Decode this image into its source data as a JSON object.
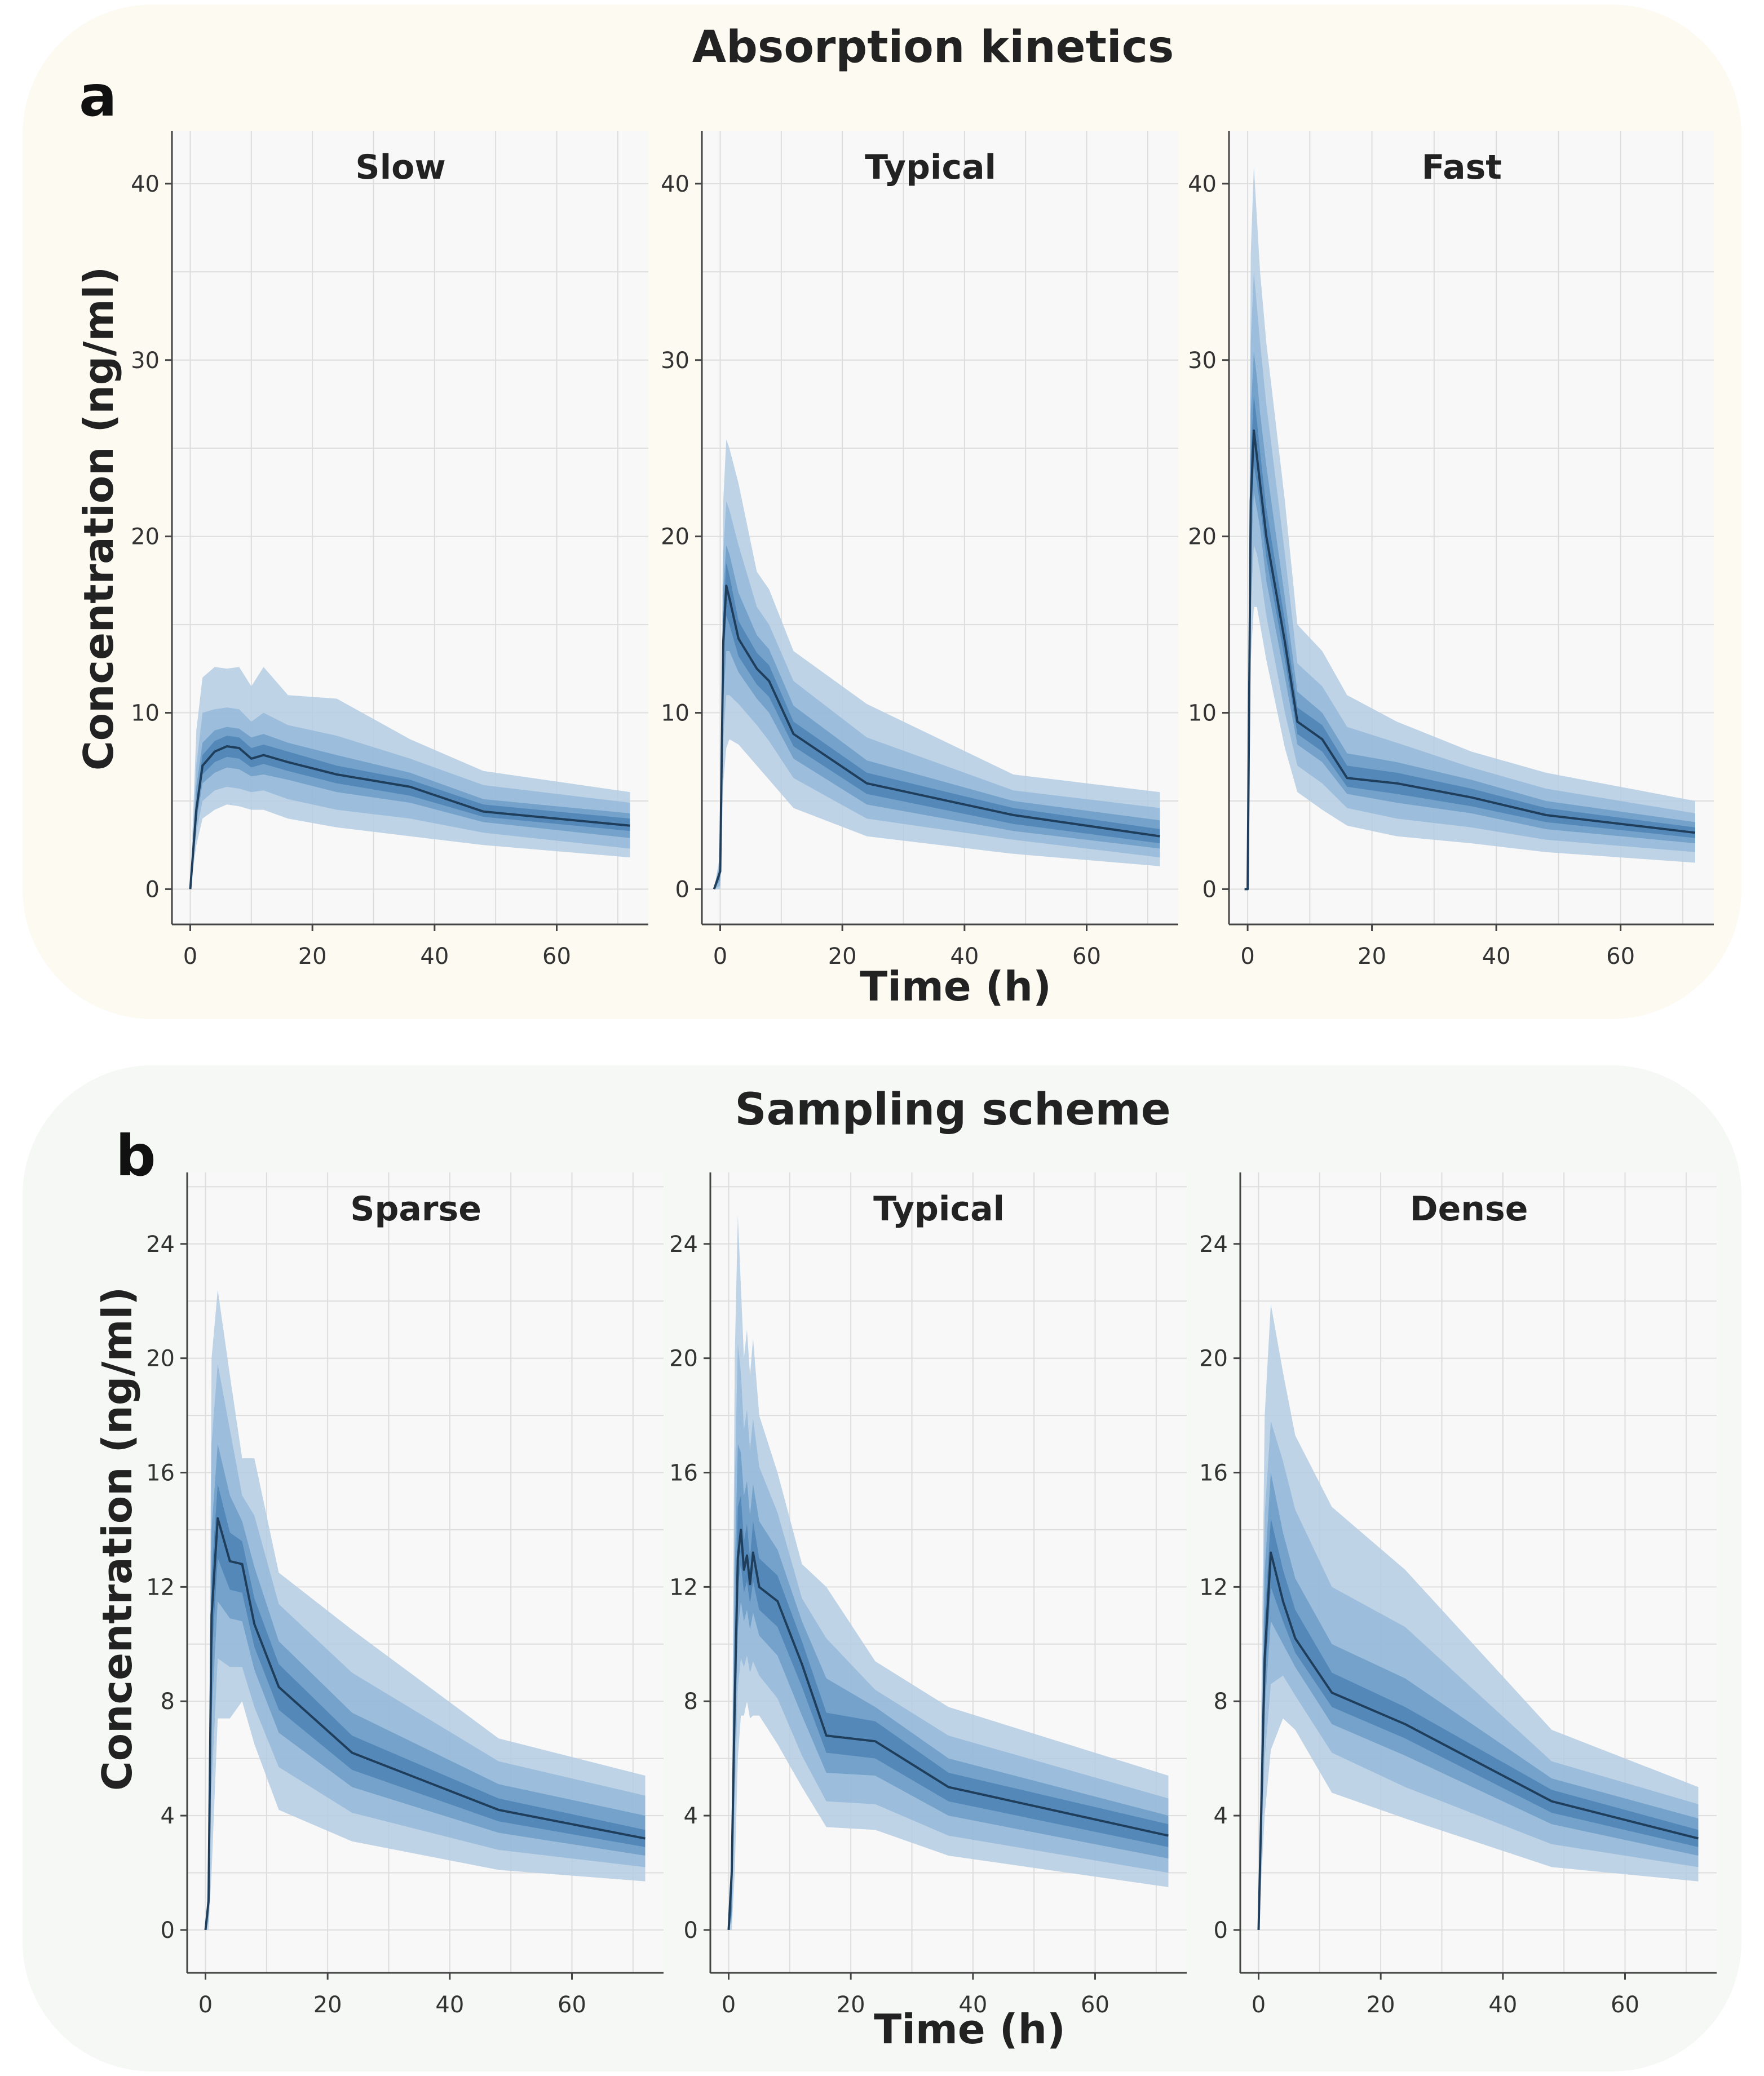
{
  "colors": {
    "section_a_bg": "#fdfaf2",
    "section_b_bg": "#f5f8f5",
    "plot_bg": "#f8f8f8",
    "grid": "#dddddd",
    "axis": "#444444",
    "band_outer": "#b5cde3",
    "band_mid": "#95b8d8",
    "band_inner": "#6e9dc7",
    "band_core": "#4d84b6",
    "median_line": "#1f3e5c"
  },
  "sections": [
    {
      "letter": "a",
      "title": "Absorption kinetics",
      "ylabel": "Concentration (ng/ml)",
      "xlabel": "Time (h)"
    },
    {
      "letter": "b",
      "title": "Sampling scheme",
      "ylabel": "Concentration (ng/ml)",
      "xlabel": "Time (h)"
    }
  ],
  "chart_data": [
    {
      "type": "area",
      "section": "a",
      "title": "Slow",
      "xlim": [
        -3,
        75
      ],
      "ylim": [
        -2,
        43
      ],
      "xticks": [
        0,
        20,
        40,
        60
      ],
      "yticks": [
        0,
        10,
        20,
        30,
        40
      ],
      "grid": true,
      "x": [
        0,
        1,
        2,
        4,
        6,
        8,
        10,
        12,
        16,
        24,
        36,
        48,
        72
      ],
      "median": [
        0,
        4.5,
        7,
        7.8,
        8.1,
        8.0,
        7.4,
        7.6,
        7.2,
        6.5,
        5.8,
        4.4,
        3.6
      ],
      "bands": [
        {
          "level": "outer",
          "lower": [
            0,
            2.5,
            4,
            4.5,
            4.8,
            4.7,
            4.5,
            4.5,
            4.0,
            3.5,
            3.0,
            2.5,
            1.8
          ],
          "upper": [
            0,
            9,
            12,
            12.6,
            12.5,
            12.6,
            11.5,
            12.6,
            11,
            10.8,
            8.5,
            6.7,
            5.5
          ]
        },
        {
          "level": "mid",
          "lower": [
            0,
            3.2,
            5,
            5.6,
            5.8,
            5.7,
            5.5,
            5.6,
            5.1,
            4.5,
            4.0,
            3.2,
            2.3
          ],
          "upper": [
            0,
            7,
            10,
            10.2,
            10.3,
            10.2,
            9.5,
            10,
            9.3,
            8.7,
            7.4,
            5.9,
            4.9
          ]
        },
        {
          "level": "inner",
          "lower": [
            0,
            3.8,
            6,
            6.6,
            6.9,
            6.8,
            6.4,
            6.5,
            6.2,
            5.5,
            4.9,
            3.8,
            2.9
          ],
          "upper": [
            0,
            5.8,
            8.3,
            9.0,
            9.2,
            9.1,
            8.6,
            8.8,
            8.3,
            7.6,
            6.6,
            5.1,
            4.3
          ]
        },
        {
          "level": "core",
          "lower": [
            0,
            4.2,
            6.5,
            7.2,
            7.5,
            7.4,
            6.9,
            7.1,
            6.7,
            6.0,
            5.3,
            4.1,
            3.3
          ],
          "upper": [
            0,
            5.0,
            7.6,
            8.4,
            8.7,
            8.6,
            8.0,
            8.2,
            7.8,
            7.0,
            6.2,
            4.8,
            4.0
          ]
        }
      ]
    },
    {
      "type": "area",
      "section": "a",
      "title": "Typical",
      "xlim": [
        -3,
        75
      ],
      "ylim": [
        -2,
        43
      ],
      "xticks": [
        0,
        20,
        40,
        60
      ],
      "yticks": [
        0,
        10,
        20,
        30,
        40
      ],
      "grid": true,
      "x": [
        -1,
        0,
        0.5,
        1,
        1.5,
        3,
        6,
        8,
        12,
        24,
        48,
        72
      ],
      "median": [
        0,
        1,
        14,
        17.2,
        16.5,
        14.2,
        12.5,
        11.8,
        8.8,
        6.0,
        4.2,
        3.0
      ],
      "bands": [
        {
          "level": "outer",
          "lower": [
            0,
            0,
            6,
            8,
            8.5,
            8.2,
            7.0,
            6.2,
            4.6,
            3.0,
            2.0,
            1.3
          ],
          "upper": [
            0,
            2,
            22,
            25.5,
            25,
            23,
            18,
            17.0,
            13.5,
            10.5,
            6.5,
            5.5
          ]
        },
        {
          "level": "mid",
          "lower": [
            0,
            0.2,
            8.5,
            11,
            11,
            10.5,
            9.3,
            8.4,
            6.3,
            4.0,
            2.8,
            1.8
          ],
          "upper": [
            0,
            1.7,
            19,
            22,
            21.5,
            19.5,
            16.0,
            15.0,
            11.8,
            8.6,
            5.6,
            4.6
          ]
        },
        {
          "level": "inner",
          "lower": [
            0,
            0.5,
            10.5,
            13.5,
            13.5,
            12.3,
            10.8,
            10.0,
            7.4,
            4.8,
            3.3,
            2.3
          ],
          "upper": [
            0,
            1.4,
            17,
            19.5,
            19,
            16.8,
            14.4,
            13.6,
            10.4,
            7.3,
            5.0,
            3.9
          ]
        },
        {
          "level": "core",
          "lower": [
            0,
            0.7,
            12.5,
            15.5,
            15.0,
            13.2,
            11.6,
            10.9,
            8.1,
            5.4,
            3.7,
            2.6
          ],
          "upper": [
            0,
            1.2,
            15.5,
            18.5,
            17.8,
            15.2,
            13.4,
            12.7,
            9.5,
            6.6,
            4.6,
            3.4
          ]
        }
      ]
    },
    {
      "type": "area",
      "section": "a",
      "title": "Fast",
      "xlim": [
        -3,
        75
      ],
      "ylim": [
        -2,
        43
      ],
      "xticks": [
        0,
        20,
        40,
        60
      ],
      "yticks": [
        0,
        10,
        20,
        30,
        40
      ],
      "grid": true,
      "x": [
        -0.5,
        0,
        0.5,
        1,
        1.5,
        2,
        3,
        6,
        8,
        12,
        16,
        24,
        36,
        48,
        72
      ],
      "median": [
        0,
        0,
        22,
        26,
        24.5,
        23,
        20,
        14,
        9.5,
        8.5,
        6.3,
        6.0,
        5.2,
        4.2,
        3.2
      ],
      "bands": [
        {
          "level": "outer",
          "lower": [
            0,
            0,
            13,
            16,
            16,
            15,
            13,
            8,
            5.5,
            4.5,
            3.6,
            3.0,
            2.6,
            2.1,
            1.5
          ],
          "upper": [
            0,
            0,
            36,
            41,
            38,
            35,
            31,
            22,
            15,
            13.5,
            11.0,
            9.5,
            7.8,
            6.6,
            5.0
          ]
        },
        {
          "level": "mid",
          "lower": [
            0,
            0,
            16,
            19.5,
            19,
            18,
            15.5,
            10,
            7.0,
            6.0,
            4.6,
            4.0,
            3.5,
            2.8,
            2.1
          ],
          "upper": [
            0,
            0,
            31,
            35,
            33,
            31,
            27.5,
            19,
            12.8,
            11.5,
            9.2,
            8.3,
            6.9,
            5.7,
            4.3
          ]
        },
        {
          "level": "inner",
          "lower": [
            0,
            0,
            18.5,
            22.5,
            21.5,
            20.5,
            17.5,
            12,
            8.2,
            7.2,
            5.4,
            4.9,
            4.3,
            3.4,
            2.6
          ],
          "upper": [
            0,
            0,
            27,
            30.5,
            29,
            27,
            24,
            16.5,
            11.2,
            10.0,
            7.7,
            7.2,
            6.2,
            5.0,
            3.8
          ]
        },
        {
          "level": "core",
          "lower": [
            0,
            0,
            20,
            24,
            23,
            21.8,
            18.8,
            13,
            8.8,
            7.8,
            5.8,
            5.4,
            4.7,
            3.8,
            2.9
          ],
          "upper": [
            0,
            0,
            24.5,
            28,
            26.5,
            24.8,
            21.6,
            15.2,
            10.3,
            9.3,
            7.0,
            6.6,
            5.7,
            4.6,
            3.5
          ]
        }
      ]
    },
    {
      "type": "area",
      "section": "b",
      "title": "Sparse",
      "xlim": [
        -3,
        75
      ],
      "ylim": [
        -1.5,
        26.5
      ],
      "xticks": [
        0,
        20,
        40,
        60
      ],
      "yticks": [
        0,
        4,
        8,
        12,
        16,
        20,
        24
      ],
      "grid": true,
      "x": [
        0,
        0.5,
        1,
        2,
        4,
        6,
        8,
        12,
        24,
        48,
        72
      ],
      "median": [
        0,
        1,
        11,
        14.4,
        12.9,
        12.8,
        10.7,
        8.5,
        6.2,
        4.2,
        3.2
      ],
      "bands": [
        {
          "level": "outer",
          "lower": [
            0,
            0,
            2,
            7.4,
            7.4,
            8,
            6.5,
            4.2,
            3.1,
            2.1,
            1.7
          ],
          "upper": [
            0,
            2,
            20,
            22.4,
            19.4,
            16.5,
            16.5,
            12.5,
            10.5,
            6.7,
            5.4
          ]
        },
        {
          "level": "mid",
          "lower": [
            0,
            0.3,
            5,
            9.5,
            9.2,
            9.2,
            7.8,
            5.7,
            4.1,
            2.8,
            2.2
          ],
          "upper": [
            0,
            1.7,
            17,
            19.8,
            17.5,
            15.2,
            14.5,
            11.4,
            9.0,
            5.9,
            4.7
          ]
        },
        {
          "level": "inner",
          "lower": [
            0,
            0.5,
            7.5,
            11.5,
            10.9,
            10.8,
            9.1,
            6.9,
            5.0,
            3.4,
            2.6
          ],
          "upper": [
            0,
            1.4,
            14,
            17,
            15.2,
            14.3,
            12.7,
            10.1,
            7.6,
            5.1,
            4.0
          ]
        },
        {
          "level": "core",
          "lower": [
            0,
            0.7,
            9.4,
            13.0,
            11.9,
            11.8,
            9.9,
            7.7,
            5.6,
            3.8,
            2.9
          ],
          "upper": [
            0,
            1.2,
            12.4,
            15.6,
            13.9,
            13.6,
            11.6,
            9.3,
            6.8,
            4.6,
            3.5
          ]
        }
      ]
    },
    {
      "type": "area",
      "section": "b",
      "title": "Typical",
      "xlim": [
        -3,
        75
      ],
      "ylim": [
        -1.5,
        26.5
      ],
      "xticks": [
        0,
        20,
        40,
        60
      ],
      "yticks": [
        0,
        4,
        8,
        12,
        16,
        20,
        24
      ],
      "grid": true,
      "x": [
        0,
        0.5,
        1,
        1.5,
        2,
        2.5,
        3,
        3.5,
        4,
        5,
        8,
        12,
        16,
        24,
        36,
        72
      ],
      "median": [
        0,
        2,
        8,
        13,
        14,
        12.6,
        13.1,
        12.1,
        13.2,
        12.0,
        11.5,
        9.3,
        6.8,
        6.6,
        5.0,
        3.3
      ],
      "bands": [
        {
          "level": "outer",
          "lower": [
            0,
            0,
            2,
            6,
            7.5,
            7.5,
            8,
            7.4,
            7.5,
            7.5,
            6.5,
            5,
            3.6,
            3.5,
            2.6,
            1.5
          ],
          "upper": [
            0,
            3,
            20,
            25,
            22.5,
            20,
            21,
            19.4,
            20.7,
            18,
            16,
            12.8,
            12.0,
            9.4,
            7.8,
            5.4
          ]
        },
        {
          "level": "mid",
          "lower": [
            0,
            0.3,
            4.5,
            8.5,
            9.5,
            9.2,
            9.6,
            9.0,
            9.4,
            8.9,
            8.1,
            6.1,
            4.5,
            4.4,
            3.3,
            2.0
          ],
          "upper": [
            0,
            2.6,
            15.5,
            20.5,
            19.5,
            17.5,
            18.2,
            16.8,
            17.9,
            16.2,
            14.6,
            11.6,
            10.2,
            8.4,
            6.8,
            4.6
          ]
        },
        {
          "level": "inner",
          "lower": [
            0,
            0.5,
            6,
            10.5,
            11.5,
            10.8,
            11.2,
            10.5,
            11.1,
            10.3,
            9.6,
            7.5,
            5.5,
            5.4,
            4.0,
            2.5
          ],
          "upper": [
            0,
            2.3,
            12.5,
            17.0,
            16.7,
            15.2,
            15.7,
            14.5,
            15.6,
            14.3,
            13.3,
            10.8,
            8.8,
            7.8,
            6.0,
            4.0
          ]
        },
        {
          "level": "core",
          "lower": [
            0,
            0.7,
            7.2,
            12.0,
            12.8,
            11.8,
            12.2,
            11.4,
            12.2,
            11.2,
            10.6,
            8.5,
            6.2,
            6.0,
            4.5,
            2.9
          ],
          "upper": [
            0,
            2.1,
            10.0,
            14.8,
            15.2,
            13.6,
            14.2,
            13.0,
            14.3,
            13.0,
            12.4,
            10.1,
            7.6,
            7.3,
            5.5,
            3.7
          ]
        }
      ]
    },
    {
      "type": "area",
      "section": "b",
      "title": "Dense",
      "xlim": [
        -3,
        75
      ],
      "ylim": [
        -1.5,
        26.5
      ],
      "xticks": [
        0,
        20,
        40,
        60
      ],
      "yticks": [
        0,
        4,
        8,
        12,
        16,
        20,
        24
      ],
      "grid": true,
      "x": [
        0,
        1,
        2,
        4,
        6,
        12,
        24,
        48,
        72
      ],
      "median": [
        0,
        9.5,
        13.2,
        11.5,
        10.2,
        8.3,
        7.2,
        4.5,
        3.2
      ],
      "bands": [
        {
          "level": "outer",
          "lower": [
            0,
            4,
            6.3,
            7.4,
            7.0,
            4.8,
            3.9,
            2.2,
            1.7
          ],
          "upper": [
            0,
            18,
            21.9,
            19.5,
            17.3,
            14.8,
            12.6,
            7.0,
            5.0
          ]
        },
        {
          "level": "mid",
          "lower": [
            0,
            6,
            8.6,
            8.9,
            8.2,
            6.2,
            5.0,
            3.0,
            2.2
          ],
          "upper": [
            0,
            14.5,
            17.8,
            16.4,
            14.7,
            12.0,
            10.6,
            5.9,
            4.4
          ]
        },
        {
          "level": "inner",
          "lower": [
            0,
            7.7,
            10.8,
            10.0,
            9.2,
            7.2,
            6.1,
            3.7,
            2.6
          ],
          "upper": [
            0,
            12.5,
            16.0,
            13.9,
            12.3,
            10.0,
            8.8,
            5.3,
            3.9
          ]
        },
        {
          "level": "core",
          "lower": [
            0,
            8.5,
            12.0,
            10.8,
            9.7,
            7.8,
            6.7,
            4.1,
            2.9
          ],
          "upper": [
            0,
            10.8,
            14.4,
            12.6,
            11.2,
            9.0,
            7.8,
            4.9,
            3.5
          ]
        }
      ]
    }
  ]
}
